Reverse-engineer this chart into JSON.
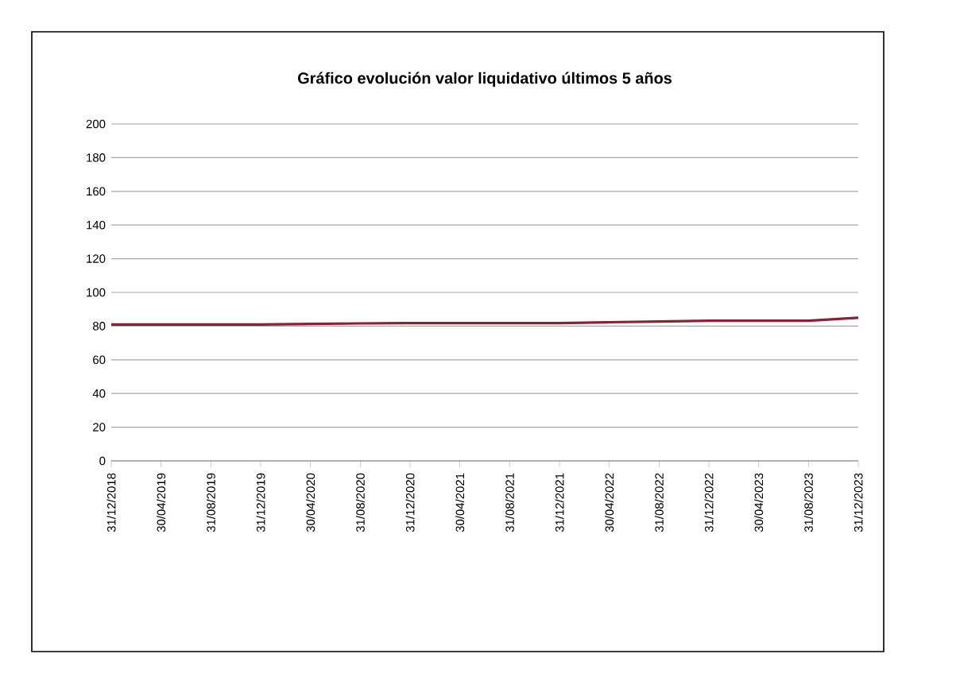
{
  "chart_data": {
    "type": "line",
    "title": "Gráfico evolución valor liquidativo últimos 5 años",
    "categories": [
      "31/12/2018",
      "30/04/2019",
      "31/08/2019",
      "31/12/2019",
      "30/04/2020",
      "31/08/2020",
      "31/12/2020",
      "30/04/2021",
      "31/08/2021",
      "31/12/2021",
      "30/04/2022",
      "31/08/2022",
      "31/12/2022",
      "30/04/2023",
      "31/08/2023",
      "31/12/2023"
    ],
    "series": [
      {
        "color": "#8b2232",
        "values": [
          81,
          81,
          81,
          81,
          81.3,
          81.6,
          81.8,
          81.8,
          81.8,
          81.8,
          82.3,
          82.7,
          83.2,
          83.2,
          83.2,
          85
        ]
      }
    ],
    "ylim": [
      0,
      200
    ],
    "yticks": [
      0,
      20,
      40,
      60,
      80,
      100,
      120,
      140,
      160,
      180,
      200
    ],
    "grid": "y",
    "legend": false,
    "marker": "none",
    "line_style": "solid"
  }
}
